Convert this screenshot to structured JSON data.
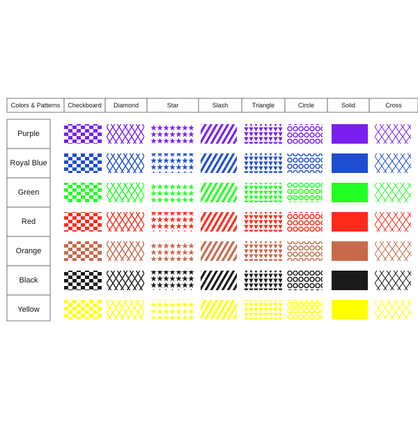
{
  "table": {
    "header": [
      "Colors & Patterns",
      "Checkboard",
      "Diamond",
      "Star",
      "Slash",
      "Triangle",
      "Circle",
      "Solid",
      "Cross"
    ],
    "rows": [
      {
        "label": "Purple",
        "color": "#7a1ff0"
      },
      {
        "label": "Royal Blue",
        "color": "#1e4fd0"
      },
      {
        "label": "Green",
        "color": "#22ff22"
      },
      {
        "label": "Red",
        "color": "#ff2a1a"
      },
      {
        "label": "Orange",
        "color": "#c8694a"
      },
      {
        "label": "Black",
        "color": "#1a1a1a"
      },
      {
        "label": "Yellow",
        "color": "#ffff00"
      }
    ]
  }
}
